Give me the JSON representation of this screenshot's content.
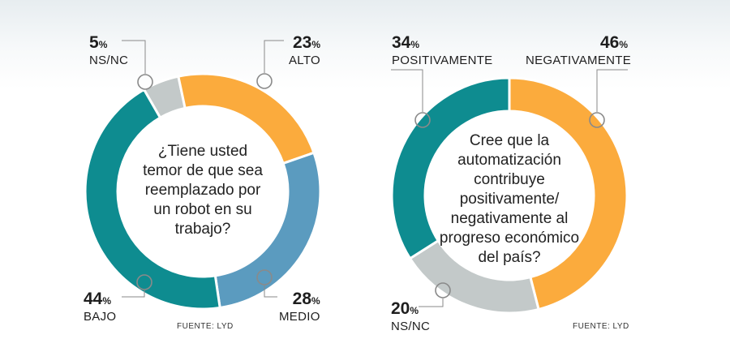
{
  "chart_data": [
    {
      "type": "pie",
      "question": "¿Tiene usted temor de que sea reemplazado por un robot en su trabajo?",
      "slices": [
        {
          "label": "NS/NC",
          "value": 5,
          "color": "#c3c9c9"
        },
        {
          "label": "ALTO",
          "value": 23,
          "color": "#fbab3d"
        },
        {
          "label": "MEDIO",
          "value": 28,
          "color": "#5b9bbf"
        },
        {
          "label": "BAJO",
          "value": 44,
          "color": "#0e8c90"
        }
      ],
      "source": "FUENTE: LYD"
    },
    {
      "type": "pie",
      "question": "Cree que la automatización contribuye positivamente/ negativamente al progreso económico del país?",
      "slices": [
        {
          "label": "NEGATIVAMENTE",
          "value": 46,
          "color": "#fbab3d"
        },
        {
          "label": "NS/NC",
          "value": 20,
          "color": "#c3c9c9"
        },
        {
          "label": "POSITIVAMENTE",
          "value": 34,
          "color": "#0e8c90"
        }
      ],
      "source": "FUENTE: LYD"
    }
  ],
  "percent_sign": "%"
}
